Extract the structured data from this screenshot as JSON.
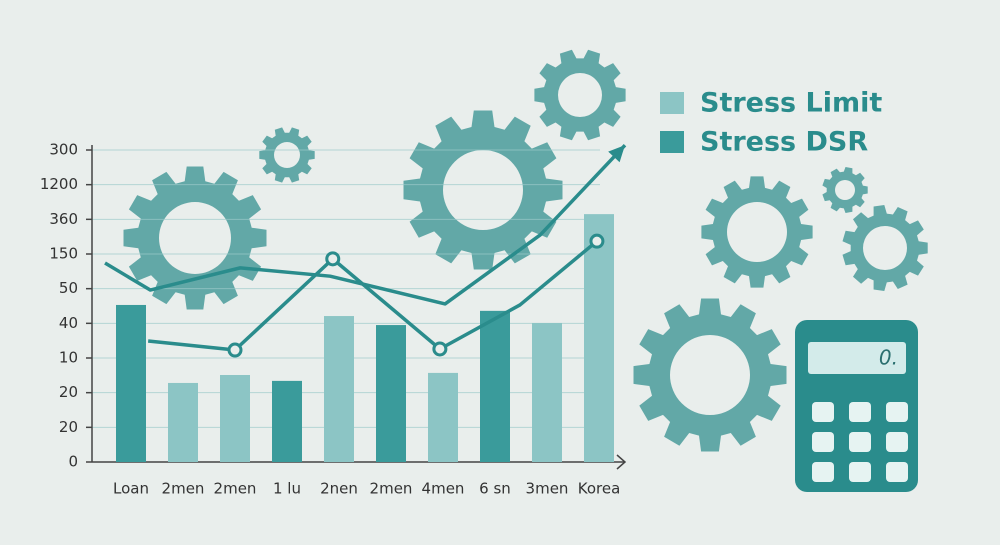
{
  "chart_data": {
    "type": "bar",
    "categories": [
      "Loan",
      "2men",
      "2men",
      "1 lu",
      "2nen",
      "2men",
      "4men",
      "6 sn",
      "3men",
      "Korea"
    ],
    "series": [
      {
        "name": "Stress Limit",
        "color": "#8cc5c5",
        "values": [
          null,
          2.28,
          2.51,
          null,
          4.21,
          null,
          2.57,
          null,
          4.01,
          7.15
        ]
      },
      {
        "name": "Stress DSR",
        "color": "#3a9b9b",
        "values": [
          4.53,
          null,
          null,
          2.34,
          null,
          3.95,
          null,
          4.36,
          null,
          null
        ]
      }
    ],
    "lines": [
      {
        "color": "#2a8c8c",
        "x": [
          -0.5,
          0.37,
          2.1,
          3.83,
          6.04,
          7.87,
          9.5
        ],
        "values": [
          5.74,
          4.96,
          5.6,
          5.36,
          4.56,
          6.55,
          9.14
        ]
      },
      {
        "color": "#2a8c8c",
        "x": [
          0.33,
          2.0,
          3.88,
          5.94,
          7.48,
          8.96
        ],
        "values": [
          3.49,
          3.23,
          5.86,
          3.26,
          4.53,
          6.37
        ]
      }
    ],
    "ylim": [
      0,
      9
    ],
    "yticks": [
      {
        "value": 0,
        "label": "0"
      },
      {
        "value": 1,
        "label": "20"
      },
      {
        "value": 2,
        "label": "20"
      },
      {
        "value": 3,
        "label": "10"
      },
      {
        "value": 4,
        "label": "40"
      },
      {
        "value": 5,
        "label": "50"
      },
      {
        "value": 6,
        "label": "150"
      },
      {
        "value": 7,
        "label": "360"
      },
      {
        "value": 8,
        "label": "1200"
      },
      {
        "value": 9,
        "label": "300"
      }
    ],
    "grid": true
  },
  "calculator_display": "0."
}
